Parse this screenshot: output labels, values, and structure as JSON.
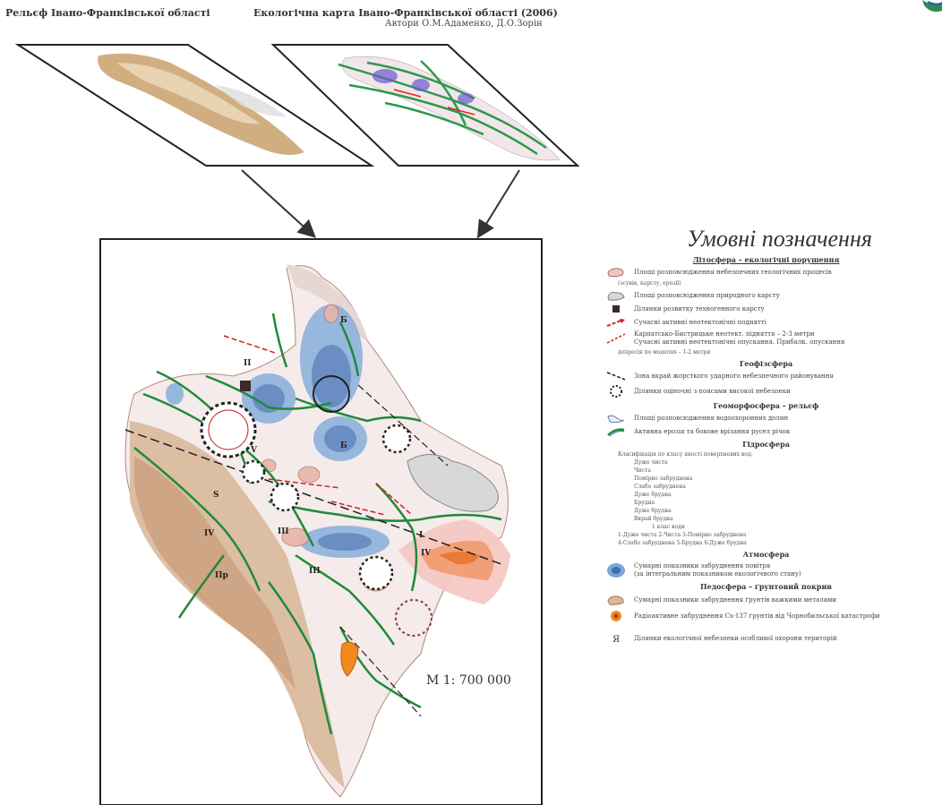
{
  "titles": {
    "relief_title": "Рельєф Івано-Франківської області",
    "eco_title": "Екологічна карта Івано-Франківської області (2006)",
    "authors": "Автори О.М.Адаменко, Д.О.Зорін"
  },
  "scale": "M 1: 700 000",
  "legend": {
    "title": "Умовні позначення",
    "sections": {
      "lithosphere": "Літосфера – екологічні порушення",
      "geophysics": "Геофізсфера",
      "geomorph": "Геоморфосфера – рельєф",
      "hydrosphere": "Гідросфера",
      "atmosphere": "Атмосфера",
      "pedosphere": "Педосфера – ґрунтовий покрив"
    },
    "items": {
      "karst_zone": "Площі розповсюдження небезпечних геологічних процесів",
      "karst_zone_2": "(зсувів, карсту, ерозії)",
      "natural_karst": "Площі розповсюдження природного карсту",
      "tech_karst": "Ділянки розвитку техногенного карсту",
      "tectonics": "Сучасні активні неотектонічні поднятті",
      "uplift_1": "Карпатсько-Бистрицьке неотект. підняття – 2-3 метри",
      "uplift_2": "Сучасні активні неотектонічні опускання. Прибалк. опускання",
      "uplift_3": "депресія по моделях – 1-2 метри",
      "geophys_1": "Зона вкрай жорсткого ударного небезпечного районування",
      "geophys_2": "Ділянки оціночні з поясами високої небезпеки",
      "geomorph_1": "Площі розповсюдження водоохоронних долин",
      "geomorph_2": "Активна ерозія та бокове врізання русел річок",
      "hydro_note": "Класифікація по класу якості поверхневих вод:",
      "hydro_1": "Дуже чиста",
      "hydro_2": "Чиста",
      "hydro_3": "Помірно забруднена",
      "hydro_4": "Слабо забруднена",
      "hydro_5": "Дуже брудна",
      "hydro_6": "Брудна",
      "hydro_7": "Дуже брудна",
      "hydro_8": "Вкрай брудна",
      "hydro_foot1": "1 клас води",
      "hydro_foot2": "1-Дуже чиста  2-Чиста  3-Помірно забруднена",
      "hydro_foot3": "4-Слабо забруднена  5-Брудна  6-Дуже брудна",
      "atmo_1": "Сумарні показники забруднення повітря",
      "atmo_2": "(за інтегральним показником екологічного стану)",
      "pedo_1": "Сумарні показники забруднення ґрунтів важкими металами",
      "pedo_2": "Радіоактивне забруднення Cs-137 ґрунтів від Чорнобильської катастрофи",
      "pedo_3": "Ділянки екологічної небезпеки особливої охорони територій"
    }
  },
  "map_labels": [
    "Б",
    "Б",
    "II",
    "III",
    "III",
    "IV",
    "IV",
    "V",
    "I",
    "S",
    "Пр"
  ]
}
